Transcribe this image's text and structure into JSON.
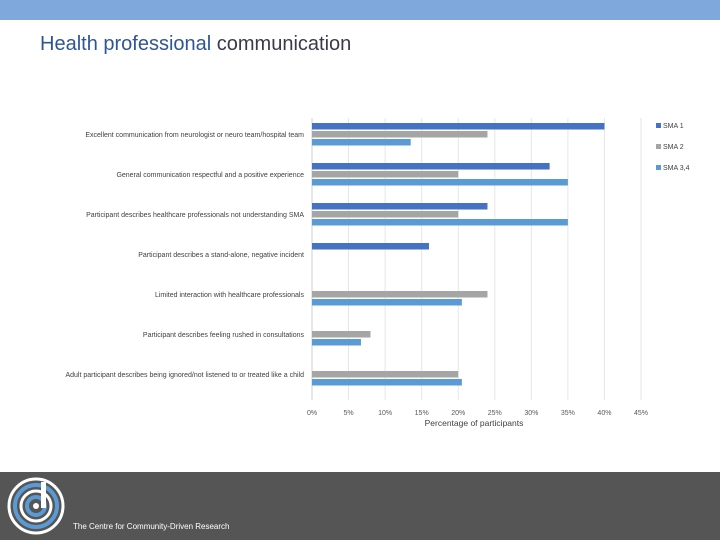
{
  "slide": {
    "title_accent": "Health professional",
    "title_rest": " communication",
    "footer_text": "The Centre for Community-Driven Research"
  },
  "colors": {
    "header_band": "#7fa9dc",
    "footer": "#555555",
    "series": [
      "#4472c4",
      "#a5a5a5",
      "#5b9bd5"
    ]
  },
  "chart_data": {
    "type": "bar",
    "orientation": "horizontal",
    "title": "",
    "xlabel": "Percentage of participants",
    "ylabel": "",
    "xlim": [
      0,
      45
    ],
    "x_ticks": [
      "0%",
      "5%",
      "10%",
      "15%",
      "20%",
      "25%",
      "30%",
      "35%",
      "40%",
      "45%"
    ],
    "x_tick_values": [
      0,
      5,
      10,
      15,
      20,
      25,
      30,
      35,
      40,
      45
    ],
    "grid": true,
    "legend_position": "top-right",
    "categories": [
      "Excellent communication from neurologist or neuro team/hospital team",
      "General communication respectful and a positive experience",
      "Participant describes healthcare professionals not understanding SMA",
      "Participant describes a stand-alone, negative incident",
      "Limited interaction with healthcare professionals",
      "Participant describes feeling rushed in consultations",
      "Adult participant describes being ignored/not listened to or treated like a child"
    ],
    "series": [
      {
        "name": "SMA 1",
        "color": "#4472c4",
        "values": [
          40,
          32.5,
          24,
          16,
          0,
          0,
          0
        ]
      },
      {
        "name": "SMA 2",
        "color": "#a5a5a5",
        "values": [
          24,
          20,
          20,
          0,
          24,
          8,
          20
        ]
      },
      {
        "name": "SMA 3,4",
        "color": "#5b9bd5",
        "values": [
          13.5,
          35,
          35,
          0,
          20.5,
          6.7,
          20.5
        ]
      }
    ]
  }
}
